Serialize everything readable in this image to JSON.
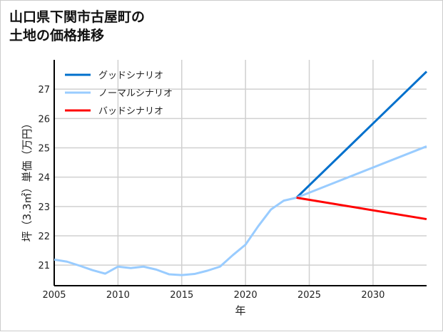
{
  "chart_data": {
    "type": "line",
    "title_lines": [
      "山口県下関市古屋町の",
      "土地の価格推移"
    ],
    "xlabel": "年",
    "ylabel": "坪（3.3㎡）単価（万円）",
    "xlim": [
      2005,
      2034.2
    ],
    "ylim": [
      20.3,
      28
    ],
    "xticks": [
      2005,
      2010,
      2015,
      2020,
      2025,
      2030
    ],
    "yticks": [
      21,
      22,
      23,
      24,
      25,
      26,
      27
    ],
    "grid": true,
    "legend_position": "top-left",
    "series": [
      {
        "name": "グッドシナリオ",
        "color": "#0070cc",
        "x": [
          2024,
          2034.2
        ],
        "y": [
          23.3,
          27.6
        ]
      },
      {
        "name": "ノーマルシナリオ",
        "color": "#99ccff",
        "x": [
          2005,
          2006,
          2007,
          2008,
          2009,
          2010,
          2011,
          2012,
          2013,
          2014,
          2015,
          2016,
          2017,
          2018,
          2019,
          2020,
          2021,
          2022,
          2023,
          2024,
          2034.2
        ],
        "y": [
          21.19,
          21.12,
          20.98,
          20.83,
          20.71,
          20.95,
          20.9,
          20.95,
          20.85,
          20.69,
          20.66,
          20.7,
          20.81,
          20.95,
          21.34,
          21.7,
          22.33,
          22.9,
          23.2,
          23.3,
          25.05
        ]
      },
      {
        "name": "バッドシナリオ",
        "color": "#ff0000",
        "x": [
          2024,
          2034.2
        ],
        "y": [
          23.3,
          22.57
        ]
      }
    ]
  }
}
